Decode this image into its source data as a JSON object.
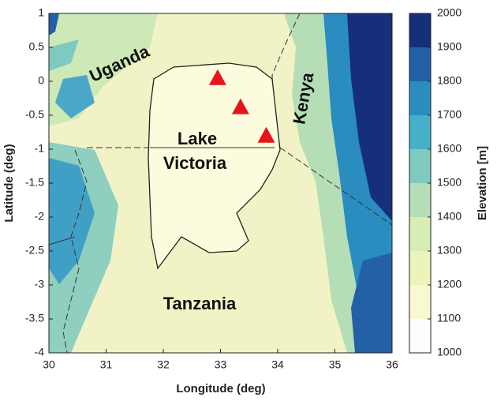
{
  "chart_data": {
    "type": "map",
    "xlabel": "Longitude (deg)",
    "ylabel": "Latitude (deg)",
    "xlim": [
      30,
      36
    ],
    "ylim": [
      -4,
      1
    ],
    "xticks": [
      30,
      31,
      32,
      33,
      34,
      35,
      36
    ],
    "yticks": [
      1,
      0.5,
      0,
      -0.5,
      -1,
      -1.5,
      -2,
      -2.5,
      -3,
      -3.5,
      -4
    ],
    "places": [
      "Uganda",
      "Kenya",
      "Lake",
      "Victoria",
      "Tanzania"
    ],
    "markers": {
      "x": [
        32.95,
        33.35,
        33.8
      ],
      "y": [
        0.05,
        -0.38,
        -0.8
      ],
      "color": "#e8141c"
    },
    "colorbar": {
      "label": "Elevation [m]",
      "lim": [
        1000,
        2000
      ],
      "ticks": [
        1000,
        1100,
        1200,
        1300,
        1400,
        1500,
        1600,
        1700,
        1800,
        1900,
        2000
      ],
      "colors": [
        "#fdfdfd",
        "#f8f9d2",
        "#edf4bb",
        "#d8edb4",
        "#b5deb7",
        "#7fcabf",
        "#45b0c8",
        "#2a8cbf",
        "#2360a6",
        "#152f7a"
      ]
    }
  }
}
